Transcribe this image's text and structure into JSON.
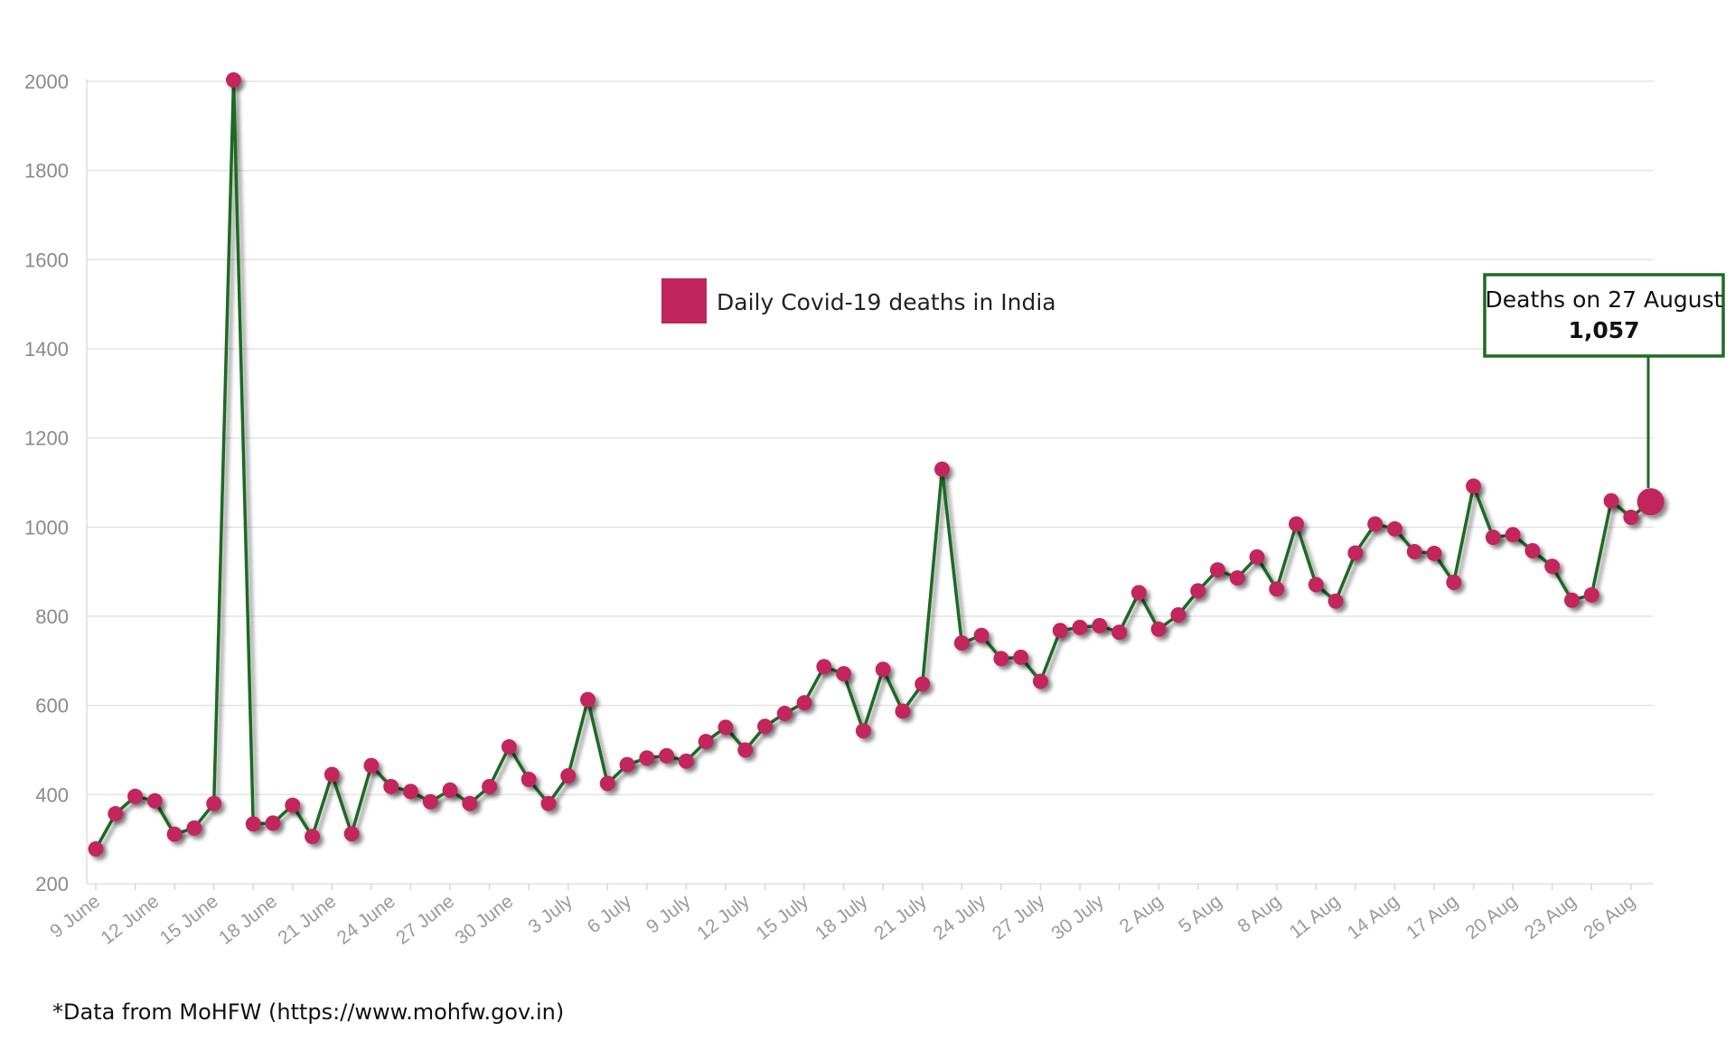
{
  "chart_data": {
    "type": "line",
    "title": "",
    "xlabel": "",
    "ylabel": "",
    "ylim": [
      200,
      2000
    ],
    "yticks": [
      200,
      400,
      600,
      800,
      1000,
      1200,
      1400,
      1600,
      1800,
      2000
    ],
    "grid": true,
    "legend_placement": "top-center",
    "x_start": "9 June",
    "x_tick_labels": [
      "9 June",
      "12 June",
      "15 June",
      "18 June",
      "21 June",
      "24 June",
      "27 June",
      "30 June",
      "3 July",
      "6 July",
      "9 July",
      "12 July",
      "15 July",
      "18 July",
      "21 July",
      "24 July",
      "27 July",
      "30 July",
      "2 Aug",
      "5 Aug",
      "8 Aug",
      "11 Aug",
      "14 Aug",
      "17 Aug",
      "20 Aug",
      "23 Aug",
      "26 Aug"
    ],
    "x_tick_every": 3,
    "series": [
      {
        "name": "Daily Covid-19 deaths in India",
        "line_color": "#1f6b22",
        "marker_color": "#c2255c",
        "values": [
          278,
          357,
          396,
          386,
          311,
          325,
          380,
          2003,
          334,
          336,
          376,
          306,
          445,
          312,
          465,
          418,
          407,
          384,
          410,
          380,
          418,
          507,
          434,
          380,
          442,
          613,
          425,
          467,
          482,
          487,
          475,
          519,
          551,
          500,
          553,
          582,
          606,
          687,
          671,
          543,
          681,
          587,
          648,
          1130,
          740,
          757,
          705,
          708,
          654,
          768,
          775,
          779,
          764,
          853,
          771,
          803,
          857,
          904,
          886,
          933,
          861,
          1007,
          871,
          834,
          942,
          1007,
          996,
          945,
          941,
          876,
          1092,
          977,
          983,
          947,
          912,
          836,
          848,
          1059,
          1022,
          1057
        ]
      }
    ],
    "annotations": [
      {
        "text": "Deaths on 27 August",
        "value_text": "1,057",
        "x_index": 79
      }
    ]
  },
  "legend": {
    "label": "Daily Covid-19 deaths in India"
  },
  "callout": {
    "title": "Deaths on 27 August",
    "value": "1,057"
  },
  "source_note": "*Data from MoHFW (https://www.mohfw.gov.in)"
}
